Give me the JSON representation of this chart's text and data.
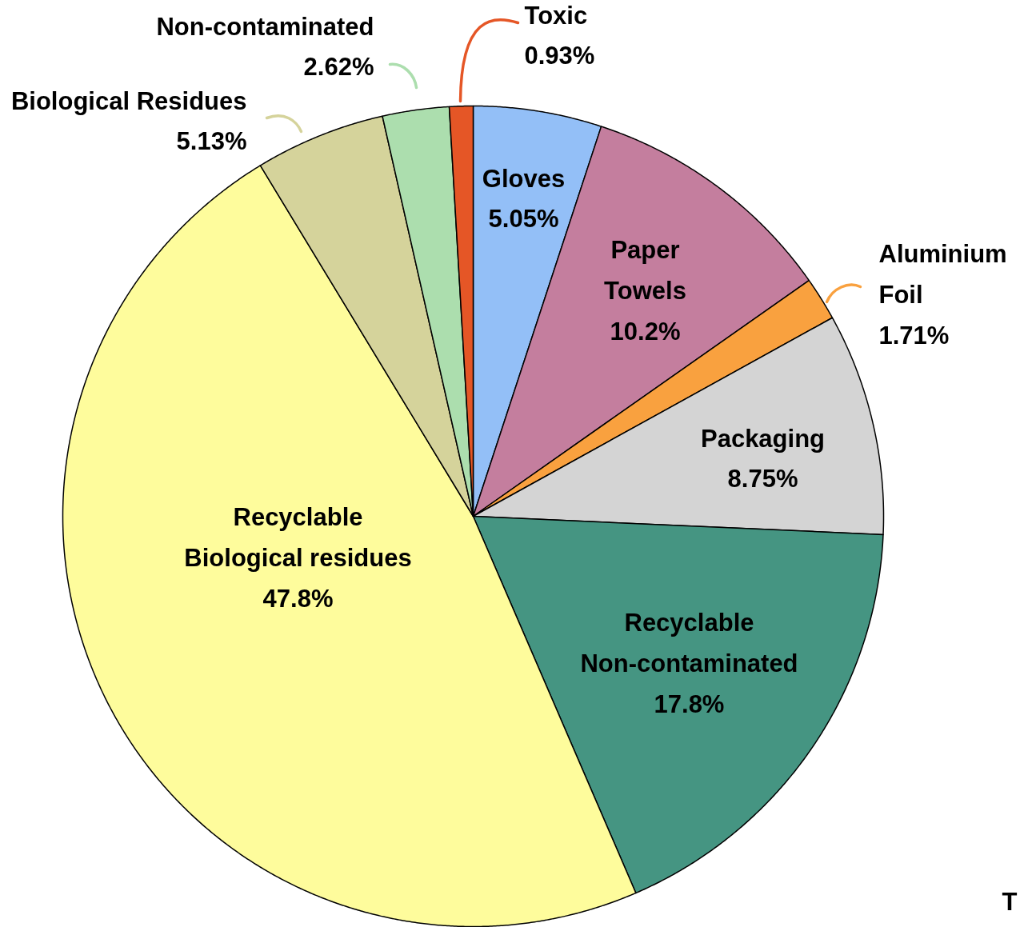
{
  "chart_data": {
    "type": "pie",
    "categories": [
      "Gloves",
      "Paper\nTowels",
      "Aluminium\nFoil",
      "Packaging",
      "Recyclable\nNon-contaminated",
      "Recyclable\nBiological residues",
      "Biological Residues",
      "Non-contaminated",
      "Toxic"
    ],
    "values": [
      5.05,
      10.2,
      1.71,
      8.75,
      17.8,
      47.8,
      5.13,
      2.62,
      0.93
    ],
    "colors": [
      "#93bff7",
      "#c47e9e",
      "#f9a13f",
      "#d4d4d4",
      "#459582",
      "#fefc9c",
      "#d5d39b",
      "#acdeae",
      "#e55626"
    ],
    "value_labels": [
      "5.05%",
      "10.2%",
      "1.71%",
      "8.75%",
      "17.8%",
      "47.8%",
      "5.13%",
      "2.62%",
      "0.93%"
    ],
    "annotations": [
      "T"
    ]
  }
}
